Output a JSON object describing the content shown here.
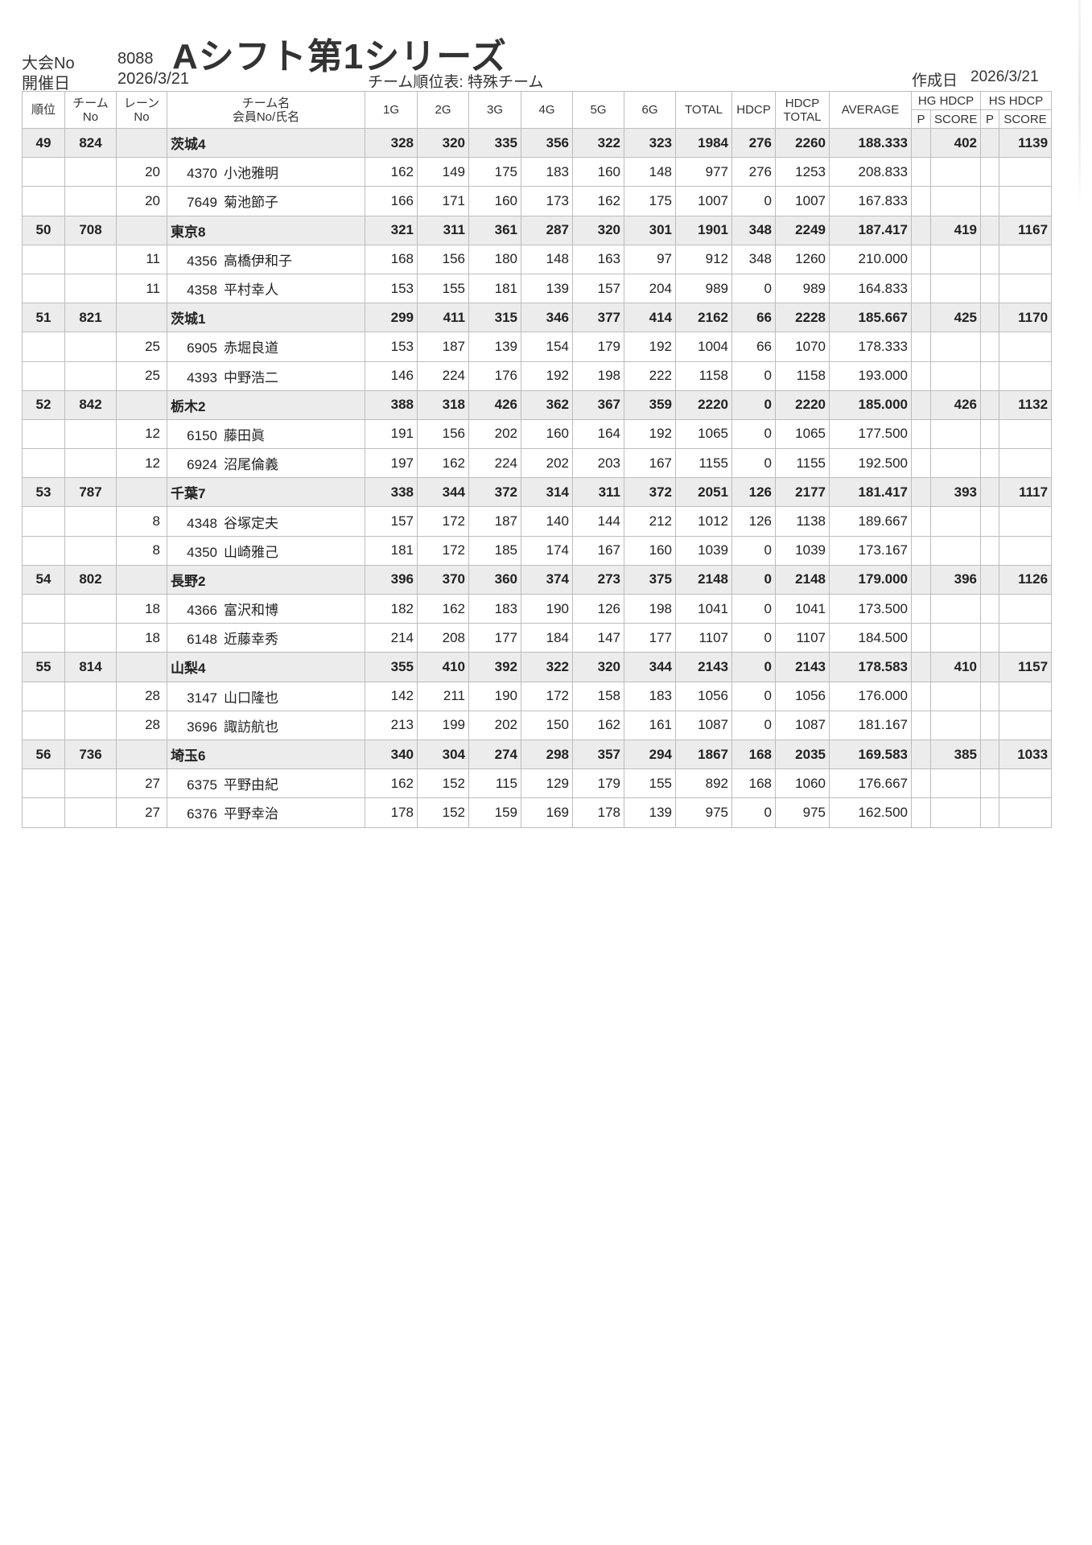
{
  "header": {
    "event_no_label": "大会No",
    "event_no": "8088",
    "title": "Aシフト第1シリーズ",
    "date_label": "開催日",
    "date": "2026/3/21",
    "report_title": "チーム順位表: 特殊チーム",
    "created_label": "作成日",
    "created_date": "2026/3/21"
  },
  "columns": {
    "rank": "順位",
    "team_no_1": "チーム",
    "team_no_2": "No",
    "lane_1": "レーン",
    "lane_2": "No",
    "name_1": "チーム名",
    "name_2": "会員No/氏名",
    "g1": "1G",
    "g2": "2G",
    "g3": "3G",
    "g4": "4G",
    "g5": "5G",
    "g6": "6G",
    "total": "TOTAL",
    "hdcp": "HDCP",
    "hdcp_total_1": "HDCP",
    "hdcp_total_2": "TOTAL",
    "average": "AVERAGE",
    "hg_1": "HG HDCP",
    "hg_p": "P",
    "hg_score": "SCORE",
    "hs_1": "HS HDCP",
    "hs_p": "P",
    "hs_score": "SCORE"
  },
  "teams": [
    {
      "rank": "49",
      "team_no": "824",
      "name": "茨城4",
      "games": [
        "328",
        "320",
        "335",
        "356",
        "322",
        "323"
      ],
      "total": "1984",
      "hdcp": "276",
      "hdcp_total": "2260",
      "average": "188.333",
      "hg_p": "",
      "hg_score": "402",
      "hs_p": "",
      "hs_score": "1139",
      "members": [
        {
          "lane": "20",
          "member_no": "4370",
          "name": "小池雅明",
          "games": [
            "162",
            "149",
            "175",
            "183",
            "160",
            "148"
          ],
          "total": "977",
          "hdcp": "276",
          "hdcp_total": "1253",
          "average": "208.833"
        },
        {
          "lane": "20",
          "member_no": "7649",
          "name": "菊池節子",
          "games": [
            "166",
            "171",
            "160",
            "173",
            "162",
            "175"
          ],
          "total": "1007",
          "hdcp": "0",
          "hdcp_total": "1007",
          "average": "167.833"
        }
      ]
    },
    {
      "rank": "50",
      "team_no": "708",
      "name": "東京8",
      "games": [
        "321",
        "311",
        "361",
        "287",
        "320",
        "301"
      ],
      "total": "1901",
      "hdcp": "348",
      "hdcp_total": "2249",
      "average": "187.417",
      "hg_p": "",
      "hg_score": "419",
      "hs_p": "",
      "hs_score": "1167",
      "members": [
        {
          "lane": "11",
          "member_no": "4356",
          "name": "高橋伊和子",
          "games": [
            "168",
            "156",
            "180",
            "148",
            "163",
            "97"
          ],
          "total": "912",
          "hdcp": "348",
          "hdcp_total": "1260",
          "average": "210.000"
        },
        {
          "lane": "11",
          "member_no": "4358",
          "name": "平村幸人",
          "games": [
            "153",
            "155",
            "181",
            "139",
            "157",
            "204"
          ],
          "total": "989",
          "hdcp": "0",
          "hdcp_total": "989",
          "average": "164.833"
        }
      ]
    },
    {
      "rank": "51",
      "team_no": "821",
      "name": "茨城1",
      "games": [
        "299",
        "411",
        "315",
        "346",
        "377",
        "414"
      ],
      "total": "2162",
      "hdcp": "66",
      "hdcp_total": "2228",
      "average": "185.667",
      "hg_p": "",
      "hg_score": "425",
      "hs_p": "",
      "hs_score": "1170",
      "members": [
        {
          "lane": "25",
          "member_no": "6905",
          "name": "赤堀良道",
          "games": [
            "153",
            "187",
            "139",
            "154",
            "179",
            "192"
          ],
          "total": "1004",
          "hdcp": "66",
          "hdcp_total": "1070",
          "average": "178.333"
        },
        {
          "lane": "25",
          "member_no": "4393",
          "name": "中野浩二",
          "games": [
            "146",
            "224",
            "176",
            "192",
            "198",
            "222"
          ],
          "total": "1158",
          "hdcp": "0",
          "hdcp_total": "1158",
          "average": "193.000"
        }
      ]
    },
    {
      "rank": "52",
      "team_no": "842",
      "name": "栃木2",
      "games": [
        "388",
        "318",
        "426",
        "362",
        "367",
        "359"
      ],
      "total": "2220",
      "hdcp": "0",
      "hdcp_total": "2220",
      "average": "185.000",
      "hg_p": "",
      "hg_score": "426",
      "hs_p": "",
      "hs_score": "1132",
      "members": [
        {
          "lane": "12",
          "member_no": "6150",
          "name": "藤田眞",
          "games": [
            "191",
            "156",
            "202",
            "160",
            "164",
            "192"
          ],
          "total": "1065",
          "hdcp": "0",
          "hdcp_total": "1065",
          "average": "177.500"
        },
        {
          "lane": "12",
          "member_no": "6924",
          "name": "沼尾倫義",
          "games": [
            "197",
            "162",
            "224",
            "202",
            "203",
            "167"
          ],
          "total": "1155",
          "hdcp": "0",
          "hdcp_total": "1155",
          "average": "192.500"
        }
      ]
    },
    {
      "rank": "53",
      "team_no": "787",
      "name": "千葉7",
      "games": [
        "338",
        "344",
        "372",
        "314",
        "311",
        "372"
      ],
      "total": "2051",
      "hdcp": "126",
      "hdcp_total": "2177",
      "average": "181.417",
      "hg_p": "",
      "hg_score": "393",
      "hs_p": "",
      "hs_score": "1117",
      "members": [
        {
          "lane": "8",
          "member_no": "4348",
          "name": "谷塚定夫",
          "games": [
            "157",
            "172",
            "187",
            "140",
            "144",
            "212"
          ],
          "total": "1012",
          "hdcp": "126",
          "hdcp_total": "1138",
          "average": "189.667"
        },
        {
          "lane": "8",
          "member_no": "4350",
          "name": "山崎雅己",
          "games": [
            "181",
            "172",
            "185",
            "174",
            "167",
            "160"
          ],
          "total": "1039",
          "hdcp": "0",
          "hdcp_total": "1039",
          "average": "173.167"
        }
      ]
    },
    {
      "rank": "54",
      "team_no": "802",
      "name": "長野2",
      "games": [
        "396",
        "370",
        "360",
        "374",
        "273",
        "375"
      ],
      "total": "2148",
      "hdcp": "0",
      "hdcp_total": "2148",
      "average": "179.000",
      "hg_p": "",
      "hg_score": "396",
      "hs_p": "",
      "hs_score": "1126",
      "members": [
        {
          "lane": "18",
          "member_no": "4366",
          "name": "富沢和博",
          "games": [
            "182",
            "162",
            "183",
            "190",
            "126",
            "198"
          ],
          "total": "1041",
          "hdcp": "0",
          "hdcp_total": "1041",
          "average": "173.500"
        },
        {
          "lane": "18",
          "member_no": "6148",
          "name": "近藤幸秀",
          "games": [
            "214",
            "208",
            "177",
            "184",
            "147",
            "177"
          ],
          "total": "1107",
          "hdcp": "0",
          "hdcp_total": "1107",
          "average": "184.500"
        }
      ]
    },
    {
      "rank": "55",
      "team_no": "814",
      "name": "山梨4",
      "games": [
        "355",
        "410",
        "392",
        "322",
        "320",
        "344"
      ],
      "total": "2143",
      "hdcp": "0",
      "hdcp_total": "2143",
      "average": "178.583",
      "hg_p": "",
      "hg_score": "410",
      "hs_p": "",
      "hs_score": "1157",
      "members": [
        {
          "lane": "28",
          "member_no": "3147",
          "name": "山口隆也",
          "games": [
            "142",
            "211",
            "190",
            "172",
            "158",
            "183"
          ],
          "total": "1056",
          "hdcp": "0",
          "hdcp_total": "1056",
          "average": "176.000"
        },
        {
          "lane": "28",
          "member_no": "3696",
          "name": "諏訪航也",
          "games": [
            "213",
            "199",
            "202",
            "150",
            "162",
            "161"
          ],
          "total": "1087",
          "hdcp": "0",
          "hdcp_total": "1087",
          "average": "181.167"
        }
      ]
    },
    {
      "rank": "56",
      "team_no": "736",
      "name": "埼玉6",
      "games": [
        "340",
        "304",
        "274",
        "298",
        "357",
        "294"
      ],
      "total": "1867",
      "hdcp": "168",
      "hdcp_total": "2035",
      "average": "169.583",
      "hg_p": "",
      "hg_score": "385",
      "hs_p": "",
      "hs_score": "1033",
      "members": [
        {
          "lane": "27",
          "member_no": "6375",
          "name": "平野由紀",
          "games": [
            "162",
            "152",
            "115",
            "129",
            "179",
            "155"
          ],
          "total": "892",
          "hdcp": "168",
          "hdcp_total": "1060",
          "average": "176.667"
        },
        {
          "lane": "27",
          "member_no": "6376",
          "name": "平野幸治",
          "games": [
            "178",
            "152",
            "159",
            "169",
            "178",
            "139"
          ],
          "total": "975",
          "hdcp": "0",
          "hdcp_total": "975",
          "average": "162.500"
        }
      ]
    }
  ]
}
